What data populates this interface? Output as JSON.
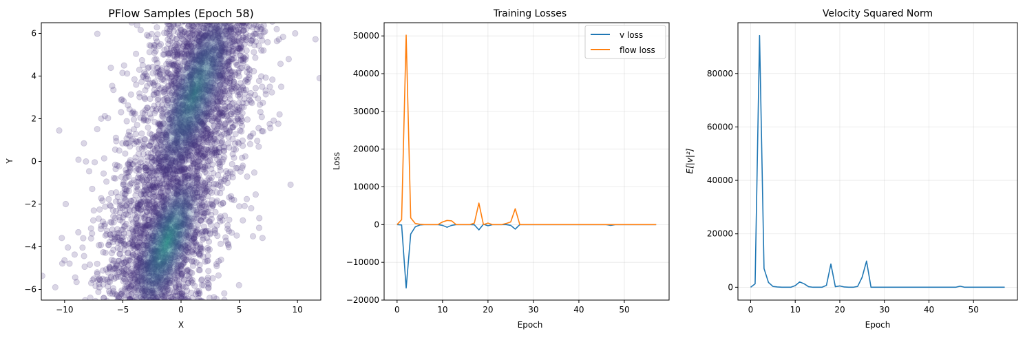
{
  "figure": {
    "background": "#ffffff"
  },
  "chart_data": [
    {
      "type": "scatter",
      "title": "PFlow Samples (Epoch 58)",
      "xlabel": "X",
      "ylabel": "Y",
      "xlim": [
        -12,
        12
      ],
      "ylim": [
        -6.5,
        6.5
      ],
      "xticks": [
        -10,
        -5,
        0,
        5,
        10
      ],
      "yticks": [
        -6,
        -4,
        -2,
        0,
        2,
        4,
        6
      ],
      "xtick_labels": [
        "−10",
        "−5",
        "0",
        "5",
        "10"
      ],
      "ytick_labels": [
        "−6",
        "−4",
        "−2",
        "0",
        "2",
        "4",
        "6"
      ],
      "grid": false,
      "marker_color": "#46327e",
      "density_colors": [
        "#46327e",
        "#365c8d",
        "#277f8e",
        "#1fa187"
      ],
      "alpha": 0.2,
      "distribution": "two elongated clusters along the line x ≈ 0.35·y, densest near (1.5, 4.5) and (-2, -4.5); approx. 4000 points",
      "points": [
        [
          1.5,
          4.5
        ],
        [
          -2,
          -4.5
        ],
        [
          0.4,
          1.2
        ],
        [
          -0.6,
          -1.5
        ],
        [
          3.2,
          5.8
        ],
        [
          -3.8,
          -5.2
        ],
        [
          2.1,
          0.3
        ],
        [
          -1.9,
          0.1
        ],
        [
          4.8,
          2.3
        ],
        [
          -4.7,
          -2.1
        ],
        [
          6.9,
          5.2
        ],
        [
          -7.2,
          -4.8
        ],
        [
          8.6,
          3.5
        ],
        [
          -8.4,
          -3.6
        ],
        [
          9.8,
          6.0
        ],
        [
          -10.8,
          -5.9
        ],
        [
          11.9,
          3.9
        ],
        [
          -9.9,
          -2.0
        ],
        [
          0.8,
          6.2
        ],
        [
          -0.3,
          -6.3
        ]
      ]
    },
    {
      "type": "line",
      "title": "Training Losses",
      "xlabel": "Epoch",
      "ylabel": "Loss",
      "xlim": [
        -2.85,
        59.85
      ],
      "ylim": [
        -20000,
        53500
      ],
      "xticks": [
        0,
        10,
        20,
        30,
        40,
        50
      ],
      "yticks": [
        -20000,
        -10000,
        0,
        10000,
        20000,
        30000,
        40000,
        50000
      ],
      "xtick_labels": [
        "0",
        "10",
        "20",
        "30",
        "40",
        "50"
      ],
      "ytick_labels": [
        "−20000",
        "−10000",
        "0",
        "10000",
        "20000",
        "30000",
        "40000",
        "50000"
      ],
      "grid": true,
      "legend": "top-right",
      "x": [
        0,
        1,
        2,
        3,
        4,
        5,
        6,
        7,
        8,
        9,
        10,
        11,
        12,
        13,
        14,
        15,
        16,
        17,
        18,
        19,
        20,
        21,
        22,
        23,
        24,
        25,
        26,
        27,
        28,
        29,
        30,
        31,
        32,
        33,
        34,
        35,
        36,
        37,
        38,
        39,
        40,
        41,
        42,
        43,
        44,
        45,
        46,
        47,
        48,
        49,
        50,
        51,
        52,
        53,
        54,
        55,
        56,
        57
      ],
      "series": [
        {
          "name": "v loss",
          "color": "#1f77b4",
          "values": [
            0,
            -100,
            -16800,
            -2500,
            -600,
            -100,
            0,
            0,
            0,
            0,
            -200,
            -700,
            -200,
            0,
            0,
            0,
            0,
            -50,
            -1400,
            100,
            -300,
            0,
            0,
            0,
            0,
            -200,
            -1200,
            0,
            0,
            0,
            0,
            0,
            0,
            0,
            0,
            0,
            0,
            0,
            0,
            0,
            0,
            0,
            0,
            0,
            0,
            0,
            0,
            -200,
            0,
            0,
            0,
            0,
            0,
            0,
            0,
            0,
            0,
            0
          ]
        },
        {
          "name": "flow loss",
          "color": "#ff7f0e",
          "values": [
            0,
            1300,
            50200,
            1800,
            300,
            100,
            0,
            0,
            0,
            0,
            700,
            1100,
            1000,
            0,
            0,
            0,
            0,
            400,
            5700,
            0,
            400,
            0,
            0,
            0,
            300,
            700,
            4200,
            0,
            0,
            0,
            0,
            0,
            0,
            0,
            0,
            0,
            0,
            0,
            0,
            0,
            0,
            0,
            0,
            0,
            0,
            0,
            0,
            0,
            0,
            0,
            0,
            0,
            0,
            0,
            0,
            0,
            0,
            0
          ]
        }
      ]
    },
    {
      "type": "line",
      "title": "Velocity Squared Norm",
      "xlabel": "Epoch",
      "ylabel": "E[|v|²]",
      "xlim": [
        -2.85,
        59.85
      ],
      "ylim": [
        -4800,
        99000
      ],
      "xticks": [
        0,
        10,
        20,
        30,
        40,
        50
      ],
      "yticks": [
        0,
        20000,
        40000,
        60000,
        80000
      ],
      "xtick_labels": [
        "0",
        "10",
        "20",
        "30",
        "40",
        "50"
      ],
      "ytick_labels": [
        "0",
        "20000",
        "40000",
        "60000",
        "80000"
      ],
      "grid": true,
      "x": [
        0,
        1,
        2,
        3,
        4,
        5,
        6,
        7,
        8,
        9,
        10,
        11,
        12,
        13,
        14,
        15,
        16,
        17,
        18,
        19,
        20,
        21,
        22,
        23,
        24,
        25,
        26,
        27,
        28,
        29,
        30,
        31,
        32,
        33,
        34,
        35,
        36,
        37,
        38,
        39,
        40,
        41,
        42,
        43,
        44,
        45,
        46,
        47,
        48,
        49,
        50,
        51,
        52,
        53,
        54,
        55,
        56,
        57
      ],
      "series": [
        {
          "name": "",
          "color": "#1f77b4",
          "values": [
            0,
            1300,
            94200,
            7000,
            1800,
            300,
            100,
            0,
            0,
            0,
            600,
            2000,
            1300,
            200,
            0,
            0,
            0,
            700,
            8700,
            200,
            500,
            100,
            0,
            0,
            300,
            3700,
            9800,
            0,
            0,
            0,
            0,
            0,
            0,
            0,
            0,
            0,
            0,
            0,
            0,
            0,
            0,
            0,
            0,
            0,
            0,
            0,
            0,
            400,
            0,
            0,
            0,
            0,
            0,
            0,
            0,
            0,
            0,
            0
          ]
        }
      ]
    }
  ]
}
